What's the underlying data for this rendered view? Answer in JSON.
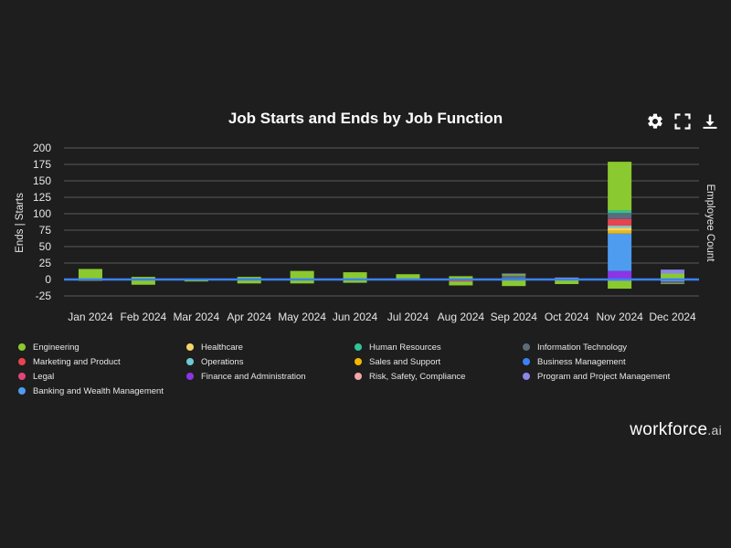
{
  "chart_title": "Job Starts and Ends by Job Function",
  "toolbar": {
    "settings_icon": "gear-icon",
    "fullscreen_icon": "fullscreen-icon",
    "download_icon": "download-icon"
  },
  "brand": {
    "name": "workforce",
    "suffix": ".ai"
  },
  "chart_data": {
    "type": "bar",
    "stacked": true,
    "title": "Job Starts and Ends by Job Function",
    "ylabel_left": "Ends | Starts",
    "ylabel_right": "Employee Count",
    "ylim": [
      -25,
      200
    ],
    "yticks": [
      -25,
      0,
      25,
      50,
      75,
      100,
      125,
      150,
      175,
      200
    ],
    "categories": [
      "Jan 2024",
      "Feb 2024",
      "Mar 2024",
      "Apr 2024",
      "May 2024",
      "Jun 2024",
      "Jul 2024",
      "Aug 2024",
      "Sep 2024",
      "Oct 2024",
      "Nov 2024",
      "Dec 2024"
    ],
    "series": [
      {
        "name": "Finance and Administration",
        "color": "#8b35e6",
        "values": [
          0,
          0,
          0,
          0,
          0,
          0,
          0,
          0,
          0,
          0,
          13,
          0
        ]
      },
      {
        "name": "Banking and Wealth Management",
        "color": "#4d9cf0",
        "values": [
          0,
          0,
          0,
          0,
          0,
          0,
          0,
          0,
          0,
          0,
          57,
          0
        ]
      },
      {
        "name": "Sales and Support",
        "color": "#f5b800",
        "values": [
          0,
          0,
          0,
          0,
          0,
          0,
          0,
          0,
          0,
          0,
          4,
          0
        ]
      },
      {
        "name": "Healthcare",
        "color": "#f6d46a",
        "values": [
          0,
          0,
          0,
          0,
          0,
          0,
          0,
          0,
          0,
          0,
          5,
          0
        ]
      },
      {
        "name": "Operations",
        "color": "#6fc9d3",
        "values": [
          0,
          0,
          0,
          0,
          0,
          0,
          0,
          0,
          0,
          0,
          3,
          0
        ]
      },
      {
        "name": "Marketing and Product",
        "color": "#e8434f",
        "values": [
          0,
          0,
          0,
          0,
          0,
          0,
          0,
          0,
          0,
          0,
          10,
          0
        ]
      },
      {
        "name": "Information Technology",
        "color": "#5b6b7c",
        "values": [
          0,
          0,
          0,
          1,
          0,
          0,
          0,
          0,
          6,
          0,
          9,
          0
        ]
      },
      {
        "name": "Human Resources",
        "color": "#2fc49a",
        "values": [
          0,
          0,
          0,
          1,
          0,
          0,
          0,
          0,
          0,
          0,
          4,
          0
        ]
      },
      {
        "name": "Engineering",
        "color": "#8ac92f",
        "values": [
          16,
          4,
          1,
          2,
          13,
          11,
          8,
          5,
          2,
          2,
          74,
          9
        ]
      },
      {
        "name": "Program and Project Management",
        "color": "#8b87e8",
        "values": [
          0,
          0,
          0,
          0,
          0,
          0,
          0,
          0,
          1,
          1,
          0,
          6
        ]
      },
      {
        "name": "Business Management",
        "color": "#3b82f6",
        "values": [
          0,
          0,
          0,
          0,
          0,
          0,
          0,
          0,
          0,
          0,
          0,
          0
        ]
      },
      {
        "name": "Legal",
        "color": "#e0457a",
        "values": [
          0,
          0,
          0,
          0,
          0,
          0,
          0,
          0,
          0,
          0,
          0,
          0
        ]
      },
      {
        "name": "Risk, Safety, Compliance",
        "color": "#f4a6a6",
        "values": [
          0,
          0,
          0,
          0,
          0,
          0,
          0,
          0,
          0,
          0,
          0,
          0
        ]
      },
      {
        "name": "Sales and Support (ends)",
        "color": "#f5b800",
        "values": [
          -2,
          0,
          0,
          0,
          0,
          0,
          0,
          0,
          0,
          0,
          0,
          0
        ]
      },
      {
        "name": "Marketing and Product (ends)",
        "color": "#e8434f",
        "values": [
          0,
          0,
          0,
          0,
          0,
          0,
          0,
          -3,
          0,
          0,
          0,
          0
        ]
      },
      {
        "name": "Program and Project Management (ends)",
        "color": "#8b87e8",
        "values": [
          0,
          -1,
          0,
          0,
          0,
          0,
          0,
          0,
          -1,
          0,
          -2,
          -3
        ]
      },
      {
        "name": "Information Technology (ends)",
        "color": "#5b6b7c",
        "values": [
          0,
          0,
          0,
          -1,
          0,
          0,
          0,
          0,
          0,
          0,
          0,
          -3
        ]
      },
      {
        "name": "Engineering (ends)",
        "color": "#8ac92f",
        "values": [
          0,
          -7,
          -3,
          -5,
          -6,
          -5,
          -1,
          -6,
          -9,
          -7,
          -12,
          -1
        ]
      }
    ]
  },
  "legend": [
    {
      "label": "Engineering",
      "color": "#8ac92f"
    },
    {
      "label": "Healthcare",
      "color": "#f6d46a"
    },
    {
      "label": "Human Resources",
      "color": "#2fc49a"
    },
    {
      "label": "Information Technology",
      "color": "#5b6b7c"
    },
    {
      "label": "Marketing and Product",
      "color": "#e8434f"
    },
    {
      "label": "Operations",
      "color": "#6fc9d3"
    },
    {
      "label": "Sales and Support",
      "color": "#f5b800"
    },
    {
      "label": "Business Management",
      "color": "#3b82f6"
    },
    {
      "label": "Legal",
      "color": "#e0457a"
    },
    {
      "label": "Finance and Administration",
      "color": "#8b35e6"
    },
    {
      "label": "Risk, Safety, Compliance",
      "color": "#f4a6a6"
    },
    {
      "label": "Program and Project Management",
      "color": "#8b87e8"
    },
    {
      "label": "Banking and Wealth Management",
      "color": "#4d9cf0"
    }
  ]
}
